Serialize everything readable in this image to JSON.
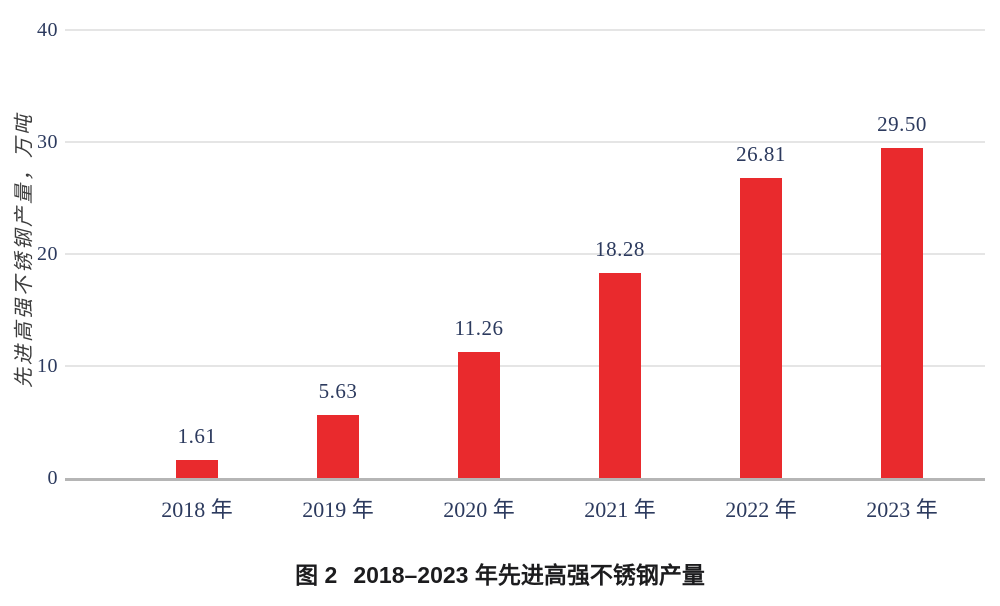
{
  "chart_data": {
    "type": "bar",
    "categories": [
      "2018 年",
      "2019 年",
      "2020 年",
      "2021 年",
      "2022 年",
      "2023 年"
    ],
    "values": [
      1.61,
      5.63,
      11.26,
      18.28,
      26.81,
      29.5
    ],
    "value_labels": [
      "1.61",
      "5.63",
      "11.26",
      "18.28",
      "26.81",
      "29.50"
    ],
    "title": "图 2  2018–2023 年先进高强不锈钢产量",
    "xlabel": "",
    "ylabel": "先进高强不锈钢产量，万吨",
    "ylim": [
      0,
      40
    ],
    "yticks": [
      0,
      10,
      20,
      30,
      40
    ],
    "grid": true,
    "legend": "none",
    "bar_color": "#e92a2d"
  },
  "caption": {
    "label": "图 2",
    "text": "2018–2023 年先进高强不锈钢产量"
  },
  "colors": {
    "bar": "#e92a2d",
    "number_text": "#2c3a5e",
    "grid": "#e5e5e5",
    "axis": "#b5b5b5",
    "ylabel_text": "#3b3b3b",
    "caption_text": "#1c1c1e"
  }
}
